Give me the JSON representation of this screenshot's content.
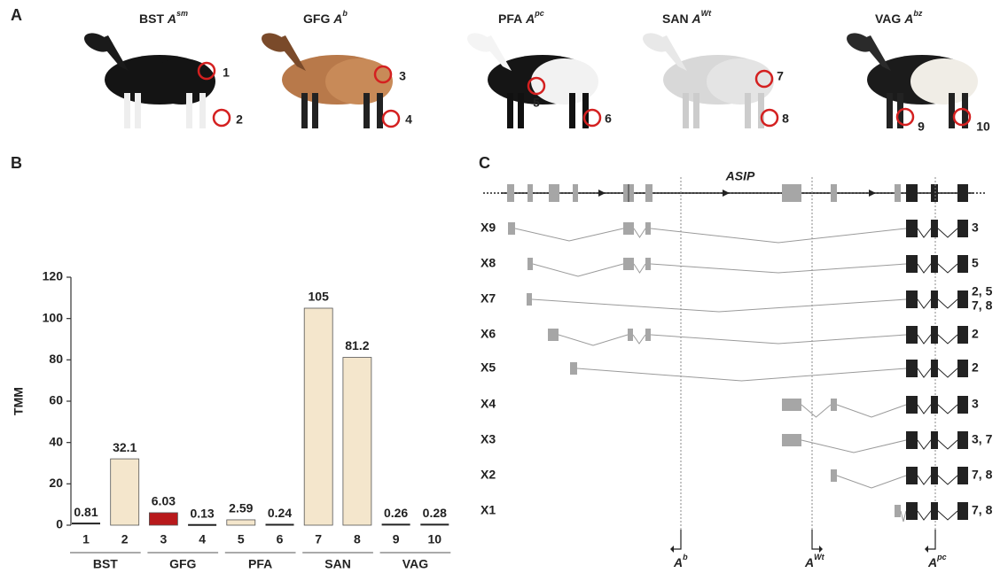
{
  "panel_labels": [
    "A",
    "B",
    "C"
  ],
  "panel_a": {
    "breeds": [
      {
        "name": "BST",
        "allele": "A",
        "sup": "sm"
      },
      {
        "name": "GFG",
        "allele": "A",
        "sup": "b"
      },
      {
        "name": "PFA",
        "allele": "A",
        "sup": "pc"
      },
      {
        "name": "SAN",
        "allele": "A",
        "sup": "Wt"
      },
      {
        "name": "VAG",
        "allele": "A",
        "sup": "bz"
      }
    ]
  },
  "chart_data": {
    "type": "bar",
    "y_label": "TMM",
    "categories": [
      "1",
      "2",
      "3",
      "4",
      "5",
      "6",
      "7",
      "8",
      "9",
      "10"
    ],
    "groups": [
      "BST",
      "GFG",
      "PFA",
      "SAN",
      "VAG"
    ],
    "values": [
      0.81,
      32.1,
      6.03,
      0.13,
      2.59,
      0.24,
      105,
      81.2,
      0.26,
      0.28
    ],
    "colors": [
      "#f4e6cc",
      "#f4e6cc",
      "#b8191b",
      "#f4e6cc",
      "#f4e6cc",
      "#f4e6cc",
      "#f4e6cc",
      "#f4e6cc",
      "#f4e6cc",
      "#f4e6cc"
    ],
    "ylim": [
      0,
      120
    ],
    "yticks": [
      0,
      20,
      40,
      60,
      80,
      100,
      120
    ]
  },
  "panel_c": {
    "gene": "ASIP",
    "transcripts": [
      {
        "name": "X9",
        "samples": [
          "3"
        ]
      },
      {
        "name": "X8",
        "samples": [
          "5"
        ]
      },
      {
        "name": "X7",
        "samples": [
          "2, 5",
          "7, 8"
        ]
      },
      {
        "name": "X6",
        "samples": [
          "2"
        ]
      },
      {
        "name": "X5",
        "samples": [
          "2"
        ]
      },
      {
        "name": "X4",
        "samples": [
          "3"
        ]
      },
      {
        "name": "X3",
        "samples": [
          "3, 7"
        ]
      },
      {
        "name": "X2",
        "samples": [
          "7, 8"
        ]
      },
      {
        "name": "X1",
        "samples": [
          "7, 8"
        ]
      }
    ],
    "alleles": [
      {
        "base": "A",
        "sup": "b"
      },
      {
        "base": "A",
        "sup": "Wt"
      },
      {
        "base": "A",
        "sup": "pc"
      }
    ]
  }
}
